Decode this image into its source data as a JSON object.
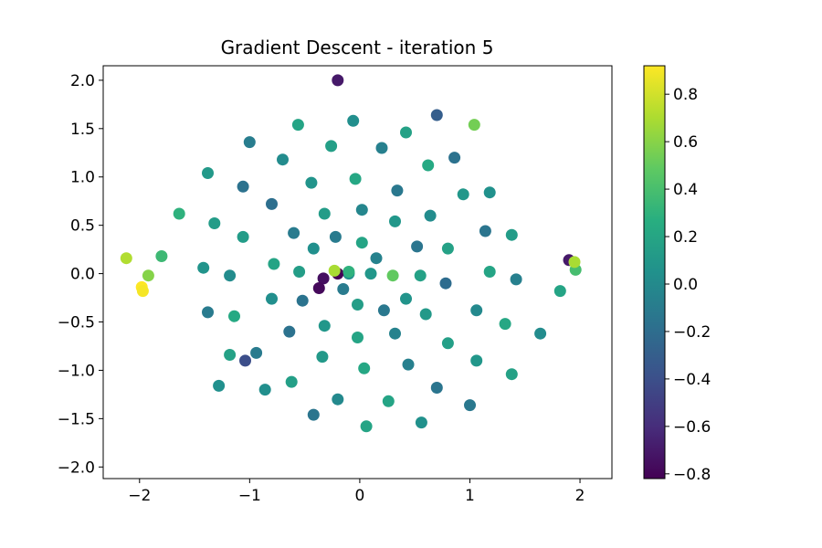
{
  "chart_data": {
    "type": "scatter",
    "title": "Gradient Descent - iteration 5",
    "xlabel": "",
    "ylabel": "",
    "xlim": [
      -2.33,
      2.29
    ],
    "ylim": [
      -2.12,
      2.15
    ],
    "xticks": [
      -2,
      -1,
      0,
      1,
      2
    ],
    "xtick_labels": [
      "−2",
      "−1",
      "0",
      "1",
      "2"
    ],
    "yticks": [
      -2.0,
      -1.5,
      -1.0,
      -0.5,
      0.0,
      0.5,
      1.0,
      1.5,
      2.0
    ],
    "ytick_labels": [
      "−2.0",
      "−1.5",
      "−1.0",
      "−0.5",
      "0.0",
      "0.5",
      "1.0",
      "1.5",
      "2.0"
    ],
    "grid": false,
    "colormap": "viridis",
    "colorbar": {
      "range": [
        -0.82,
        0.92
      ],
      "ticks": [
        -0.8,
        -0.6,
        -0.4,
        -0.2,
        0.0,
        0.2,
        0.4,
        0.6,
        0.8
      ],
      "tick_labels": [
        "−0.8",
        "−0.6",
        "−0.4",
        "−0.2",
        "0.0",
        "0.2",
        "0.4",
        "0.6",
        "0.8"
      ]
    },
    "series": [
      {
        "shape": "two interleaved spiral arms",
        "points": [
          [
            0.1,
            0.0,
            0.1
          ],
          [
            0.15,
            0.16,
            -0.05
          ],
          [
            0.02,
            0.32,
            0.2
          ],
          [
            -0.22,
            0.38,
            -0.1
          ],
          [
            -0.42,
            0.26,
            0.05
          ],
          [
            -0.55,
            0.02,
            0.15
          ],
          [
            -0.52,
            -0.28,
            -0.15
          ],
          [
            -0.32,
            -0.54,
            0.1
          ],
          [
            -0.02,
            -0.66,
            0.2
          ],
          [
            0.32,
            -0.62,
            -0.05
          ],
          [
            0.6,
            -0.42,
            0.12
          ],
          [
            0.78,
            -0.1,
            -0.2
          ],
          [
            0.8,
            0.26,
            0.18
          ],
          [
            0.64,
            0.6,
            0.02
          ],
          [
            0.34,
            0.86,
            -0.12
          ],
          [
            -0.04,
            0.98,
            0.22
          ],
          [
            -0.44,
            0.94,
            0.08
          ],
          [
            -0.8,
            0.72,
            -0.18
          ],
          [
            -1.06,
            0.38,
            0.14
          ],
          [
            -1.18,
            -0.02,
            0.02
          ],
          [
            -1.14,
            -0.44,
            0.24
          ],
          [
            -0.94,
            -0.82,
            -0.1
          ],
          [
            -0.62,
            -1.12,
            0.16
          ],
          [
            -0.2,
            -1.3,
            0.0
          ],
          [
            0.26,
            -1.32,
            0.2
          ],
          [
            0.7,
            -1.18,
            -0.14
          ],
          [
            1.06,
            -0.9,
            0.1
          ],
          [
            1.32,
            -0.52,
            0.22
          ],
          [
            1.42,
            -0.06,
            -0.06
          ],
          [
            1.38,
            0.4,
            0.14
          ],
          [
            1.18,
            0.84,
            0.06
          ],
          [
            0.86,
            1.2,
            -0.16
          ],
          [
            0.42,
            1.46,
            0.18
          ],
          [
            -0.06,
            1.58,
            0.04
          ],
          [
            -0.56,
            1.54,
            0.2
          ],
          [
            -1.0,
            1.36,
            -0.08
          ],
          [
            -1.38,
            1.04,
            0.12
          ],
          [
            -1.64,
            0.62,
            0.3
          ],
          [
            -1.8,
            0.18,
            0.36
          ],
          [
            -1.92,
            -0.02,
            0.6
          ],
          [
            -0.1,
            0.0,
            0.05
          ],
          [
            -0.15,
            -0.16,
            -0.1
          ],
          [
            -0.02,
            -0.32,
            0.15
          ],
          [
            0.22,
            -0.38,
            -0.12
          ],
          [
            0.42,
            -0.26,
            0.08
          ],
          [
            0.55,
            -0.02,
            0.18
          ],
          [
            0.52,
            0.28,
            -0.14
          ],
          [
            0.32,
            0.54,
            0.1
          ],
          [
            0.02,
            0.66,
            -0.02
          ],
          [
            -0.32,
            0.62,
            0.14
          ],
          [
            -0.6,
            0.42,
            -0.1
          ],
          [
            -0.78,
            0.1,
            0.2
          ],
          [
            -0.8,
            -0.26,
            0.04
          ],
          [
            -0.64,
            -0.6,
            -0.16
          ],
          [
            -0.34,
            -0.86,
            0.12
          ],
          [
            0.04,
            -0.98,
            0.22
          ],
          [
            0.44,
            -0.94,
            -0.06
          ],
          [
            0.8,
            -0.72,
            0.16
          ],
          [
            1.06,
            -0.38,
            0.0
          ],
          [
            1.18,
            0.02,
            0.2
          ],
          [
            1.14,
            0.44,
            -0.14
          ],
          [
            0.94,
            0.82,
            0.1
          ],
          [
            0.62,
            1.12,
            0.24
          ],
          [
            0.2,
            1.3,
            -0.06
          ],
          [
            -0.26,
            1.32,
            0.16
          ],
          [
            -0.7,
            1.18,
            0.02
          ],
          [
            -1.06,
            0.9,
            -0.16
          ],
          [
            -1.32,
            0.52,
            0.14
          ],
          [
            -1.42,
            0.06,
            0.08
          ],
          [
            -1.38,
            -0.4,
            -0.1
          ],
          [
            -1.18,
            -0.84,
            0.18
          ],
          [
            -0.86,
            -1.2,
            0.04
          ],
          [
            -0.42,
            -1.46,
            -0.14
          ],
          [
            0.06,
            -1.58,
            0.2
          ],
          [
            0.56,
            -1.54,
            0.06
          ],
          [
            1.0,
            -1.36,
            -0.12
          ],
          [
            1.38,
            -1.04,
            0.18
          ],
          [
            1.64,
            -0.62,
            0.02
          ],
          [
            1.82,
            -0.18,
            0.2
          ],
          [
            1.96,
            0.04,
            0.4
          ],
          [
            -2.12,
            0.16,
            0.72
          ],
          [
            -1.98,
            -0.14,
            0.92
          ],
          [
            -1.97,
            -0.18,
            0.9
          ],
          [
            -0.2,
            2.0,
            -0.7
          ],
          [
            -0.2,
            0.0,
            -0.82
          ],
          [
            -0.33,
            -0.05,
            -0.75
          ],
          [
            -0.37,
            -0.15,
            -0.78
          ],
          [
            -0.23,
            0.03,
            0.7
          ],
          [
            -0.1,
            0.02,
            0.3
          ],
          [
            0.3,
            -0.02,
            0.5
          ],
          [
            1.9,
            0.14,
            -0.7
          ],
          [
            1.95,
            0.12,
            0.7
          ],
          [
            1.04,
            1.54,
            0.55
          ],
          [
            -1.04,
            -0.9,
            -0.4
          ],
          [
            -1.28,
            -1.16,
            0.05
          ],
          [
            0.7,
            1.64,
            -0.3
          ]
        ]
      }
    ]
  }
}
